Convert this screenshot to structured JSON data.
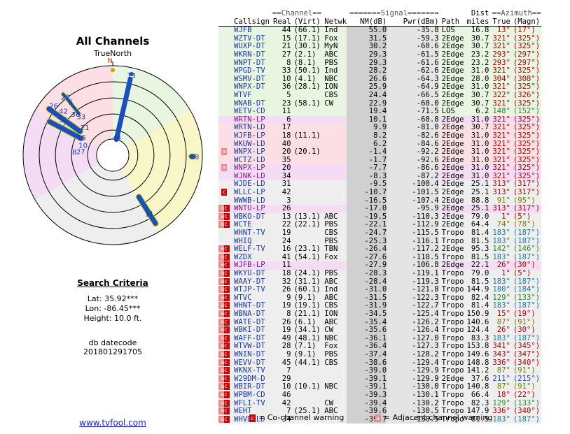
{
  "title": "All Channels",
  "compass_label": "TrueNorth",
  "compass_marker": "N",
  "search": {
    "heading": "Search Criteria",
    "lat": "Lat: 35.92***",
    "lon": "Lon: -86.45***",
    "height": "Height: 10.0 ft.",
    "db_label": "db datecode",
    "db_value": "201801291705"
  },
  "site_link": "www.tvfool.com",
  "legend": {
    "co_mark": "c",
    "co_text": "= Co-channel warning",
    "adj_mark": "a",
    "adj_text": "= Adjacent channel warning"
  },
  "colors": {
    "green": "#e8f5e1",
    "yellow": "#f9f6c8",
    "grey": "#eeeeee",
    "pink": "#fbdfe4",
    "violet": "#f3dcf4",
    "co": "#cc0000",
    "adj": "#f08a8a"
  },
  "polar": {
    "labels": [
      {
        "text": "13",
        "az": 13,
        "r": 0.92
      },
      {
        "text": "3",
        "az": 91,
        "r": 0.94
      },
      {
        "text": "44",
        "az": 13,
        "r": 0.2
      },
      {
        "text": "11",
        "az": 148,
        "r": 0.77
      },
      {
        "text": "23",
        "az": 321,
        "r": 0.84
      },
      {
        "text": "5",
        "az": 322,
        "r": 0.76
      },
      {
        "text": "26",
        "az": 310,
        "r": 0.86
      },
      {
        "text": "36",
        "az": 318,
        "r": 0.62
      },
      {
        "text": "42",
        "az": 312,
        "r": 0.74
      },
      {
        "text": "33",
        "az": 321,
        "r": 0.56
      },
      {
        "text": "31",
        "az": 306,
        "r": 0.68
      },
      {
        "text": "21",
        "az": 315,
        "r": 0.44
      },
      {
        "text": "15",
        "az": 300,
        "r": 0.4
      },
      {
        "text": "10",
        "az": 289,
        "r": 0.35
      },
      {
        "text": "8",
        "az": 275,
        "r": 0.43
      },
      {
        "text": "27",
        "az": 277,
        "r": 0.36
      }
    ],
    "beams": [
      {
        "az": 13,
        "r1": 0.18,
        "r2": 0.87,
        "w": 5,
        "fill": "#1a4fbf",
        "stroke": "#1a4fbf"
      },
      {
        "az": 91,
        "r1": 0.88,
        "r2": 0.9,
        "w": 7,
        "fill": "#1a4fbf",
        "stroke": "#d8d800"
      },
      {
        "az": 148,
        "r1": 0.55,
        "r2": 0.9,
        "w": 7,
        "fill": "#1a4fbf",
        "stroke": "#d8d800"
      },
      {
        "az": 321,
        "r1": 0.6,
        "r2": 0.88,
        "w": 4,
        "fill": "#1a4fbf",
        "stroke": "#d8d800"
      },
      {
        "az": 306,
        "r1": 0.45,
        "r2": 0.88,
        "w": 7,
        "fill": "#1a4fbf",
        "stroke": "#d8d800"
      },
      {
        "az": 298,
        "r1": 0.4,
        "r2": 0.8,
        "w": 7,
        "fill": "#1a4fbf",
        "stroke": "#d8d800"
      }
    ],
    "dots": [
      {
        "az": 0,
        "r": 0.95,
        "fill": "#d8a000"
      },
      {
        "az": 13,
        "r": 0.93,
        "fill": "#1a4fbf"
      }
    ]
  },
  "table": {
    "group_headers": {
      "channel": "==Channel==",
      "signal": "=======Signal=======",
      "dist": "Dist",
      "azimuth": "==Azimuth=="
    },
    "headers": [
      "Callsign",
      "Real",
      "(Virt)",
      "Netwk",
      "NM(dB)",
      "Pwr(dBm)",
      "Path",
      "miles",
      "True",
      "(Magn)"
    ],
    "rows": [
      {
        "w": "",
        "call": "WJFB",
        "real": "44",
        "virt": "(66.1)",
        "net": "Ind",
        "nm": "55.0",
        "pwr": "-35.8",
        "path": "LOS",
        "mi": "16.8",
        "tru": "13°",
        "mag": "(17°)",
        "bg": "green",
        "tc": "#b00000"
      },
      {
        "w": "",
        "call": "WZTV-DT",
        "real": "15",
        "virt": "(17.1)",
        "net": "Fox",
        "nm": "31.5",
        "pwr": "-59.3",
        "path": "2Edge",
        "mi": "30.7",
        "tru": "321°",
        "mag": "(325°)",
        "bg": "green",
        "tc": "#b00000"
      },
      {
        "w": "",
        "call": "WUXP-DT",
        "real": "21",
        "virt": "(30.1)",
        "net": "MyN",
        "nm": "30.2",
        "pwr": "-60.6",
        "path": "2Edge",
        "mi": "30.7",
        "tru": "321°",
        "mag": "(325°)",
        "bg": "green",
        "tc": "#b00000"
      },
      {
        "w": "",
        "call": "WKRN-DT",
        "real": "27",
        "virt": "(2.1)",
        "net": "ABC",
        "nm": "29.3",
        "pwr": "-61.5",
        "path": "2Edge",
        "mi": "23.2",
        "tru": "293°",
        "mag": "(297°)",
        "bg": "green",
        "tc": "#b00000"
      },
      {
        "w": "",
        "call": "WNPT-DT",
        "real": "8",
        "virt": "(8.1)",
        "net": "PBS",
        "nm": "29.3",
        "pwr": "-61.6",
        "path": "2Edge",
        "mi": "23.2",
        "tru": "293°",
        "mag": "(297°)",
        "bg": "green",
        "tc": "#b00000"
      },
      {
        "w": "",
        "call": "WPGD-TV",
        "real": "33",
        "virt": "(50.1)",
        "net": "Ind",
        "nm": "28.2",
        "pwr": "-62.6",
        "path": "2Edge",
        "mi": "31.0",
        "tru": "321°",
        "mag": "(325°)",
        "bg": "green",
        "tc": "#b00000"
      },
      {
        "w": "",
        "call": "WSMV-DT",
        "real": "10",
        "virt": "(4.1)",
        "net": "NBC",
        "nm": "26.6",
        "pwr": "-64.3",
        "path": "2Edge",
        "mi": "28.0",
        "tru": "304°",
        "mag": "(308°)",
        "bg": "green",
        "tc": "#b00000"
      },
      {
        "w": "",
        "call": "WNPX-DT",
        "real": "36",
        "virt": "(28.1)",
        "net": "ION",
        "nm": "25.9",
        "pwr": "-64.9",
        "path": "2Edge",
        "mi": "31.0",
        "tru": "321°",
        "mag": "(325°)",
        "bg": "green",
        "tc": "#b00000"
      },
      {
        "w": "",
        "call": "WTVF",
        "real": "5",
        "virt": "",
        "net": "CBS",
        "nm": "24.4",
        "pwr": "-66.5",
        "path": "2Edge",
        "mi": "30.7",
        "tru": "322°",
        "mag": "(326°)",
        "bg": "green",
        "tc": "#b00000"
      },
      {
        "w": "",
        "call": "WNAB-DT",
        "real": "23",
        "virt": "(58.1)",
        "net": "CW",
        "nm": "22.9",
        "pwr": "-68.0",
        "path": "2Edge",
        "mi": "30.7",
        "tru": "321°",
        "mag": "(325°)",
        "bg": "green",
        "tc": "#b00000"
      },
      {
        "w": "",
        "call": "WETV-CD",
        "real": "11",
        "virt": "",
        "net": "",
        "nm": "19.4",
        "pwr": "-71.5",
        "path": "LOS",
        "mi": "6.2",
        "tru": "148°",
        "mag": "(152°)",
        "bg": "green",
        "tc": "#2a8a2a"
      },
      {
        "w": "",
        "call": "WRTN-LP",
        "real": "6",
        "virt": "",
        "net": "",
        "nm": "10.1",
        "pwr": "-68.8",
        "path": "2Edge",
        "mi": "31.0",
        "tru": "321°",
        "mag": "(325°)",
        "bg": "violet",
        "tc": "#b00000"
      },
      {
        "w": "",
        "call": "WRTN-LD",
        "real": "17",
        "virt": "",
        "net": "",
        "nm": "9.9",
        "pwr": "-81.0",
        "path": "2Edge",
        "mi": "30.7",
        "tru": "321°",
        "mag": "(325°)",
        "bg": "pink",
        "tc": "#b00000"
      },
      {
        "w": "",
        "call": "WJFB-LP",
        "real": "18",
        "virt": "(11.1)",
        "net": "",
        "nm": "8.2",
        "pwr": "-82.6",
        "path": "2Edge",
        "mi": "31.0",
        "tru": "321°",
        "mag": "(325°)",
        "bg": "pink",
        "tc": "#b00000"
      },
      {
        "w": "",
        "call": "WKUW-LD",
        "real": "40",
        "virge": "",
        "virt": "",
        "net": "",
        "nm": "6.2",
        "pwr": "-84.6",
        "path": "2Edge",
        "mi": "31.0",
        "tru": "321°",
        "mag": "(325°)",
        "bg": "pink",
        "tc": "#b00000"
      },
      {
        "w": "a",
        "call": "WNPX-LP",
        "real": "20",
        "virt": "(20.1)",
        "net": "",
        "nm": "-1.4",
        "pwr": "-92.2",
        "path": "2Edge",
        "mi": "31.0",
        "tru": "321°",
        "mag": "(325°)",
        "bg": "pink",
        "tc": "#b00000"
      },
      {
        "w": "",
        "call": "WCTZ-LD",
        "real": "35",
        "virt": "",
        "net": "",
        "nm": "-1.7",
        "pwr": "-92.6",
        "path": "2Edge",
        "mi": "31.0",
        "tru": "321°",
        "mag": "(325°)",
        "bg": "pink",
        "tc": "#b00000"
      },
      {
        "w": "a",
        "call": "WNPX-LP",
        "real": "20",
        "virt": "",
        "net": "",
        "nm": "-7.7",
        "pwr": "-86.6",
        "path": "2Edge",
        "mi": "31.0",
        "tru": "321°",
        "mag": "(325°)",
        "bg": "violet",
        "tc": "#b00000"
      },
      {
        "w": "",
        "call": "WJNK-LD",
        "real": "34",
        "virt": "",
        "net": "",
        "nm": "-8.3",
        "pwr": "-87.2",
        "path": "2Edge",
        "mi": "31.0",
        "tru": "321°",
        "mag": "(325°)",
        "bg": "violet",
        "tc": "#b00000"
      },
      {
        "w": "",
        "call": "WJDE-LD",
        "real": "31",
        "virt": "",
        "net": "",
        "nm": "-9.5",
        "pwr": "-100.4",
        "path": "2Edge",
        "mi": "25.1",
        "tru": "313°",
        "mag": "(317°)",
        "bg": "grey",
        "tc": "#b00000"
      },
      {
        "w": "c",
        "call": "WLLC-LP",
        "real": "42",
        "virt": "",
        "net": "",
        "nm": "-10.7",
        "pwr": "-101.5",
        "path": "2Edge",
        "mi": "25.1",
        "tru": "313°",
        "mag": "(317°)",
        "bg": "grey",
        "tc": "#b00000"
      },
      {
        "w": "",
        "call": "WWWB-LD",
        "real": "3",
        "virt": "",
        "net": "",
        "nm": "-16.5",
        "pwr": "-107.4",
        "path": "2Edge",
        "mi": "88.8",
        "tru": "91°",
        "mag": "(95°)",
        "bg": "grey",
        "tc": "#7a7a00"
      },
      {
        "w": "ac",
        "call": "WNTU-LP",
        "real": "26",
        "virt": "",
        "net": "",
        "nm": "-17.0",
        "pwr": "-95.9",
        "path": "2Edge",
        "mi": "25.1",
        "tru": "313°",
        "mag": "(317°)",
        "bg": "violet",
        "tc": "#b00000"
      },
      {
        "w": "ac",
        "call": "WBKO-DT",
        "real": "13",
        "virt": "(13.1)",
        "net": "ABC",
        "nm": "-19.5",
        "pwr": "-110.3",
        "path": "2Edge",
        "mi": "79.0",
        "tru": "1°",
        "mag": "(5°)",
        "bg": "grey",
        "tc": "#b00000"
      },
      {
        "w": "ac",
        "call": "WCTE",
        "real": "22",
        "virt": "(22.1)",
        "net": "PBS",
        "nm": "-22.1",
        "pwr": "-112.9",
        "path": "2Edge",
        "mi": "64.4",
        "tru": "74°",
        "mag": "(78°)",
        "bg": "grey",
        "tc": "#7a7a00"
      },
      {
        "w": "",
        "call": "WHNT-TV",
        "real": "19",
        "virt": "",
        "net": "CBS",
        "nm": "-24.7",
        "pwr": "-115.5",
        "path": "Tropo",
        "mi": "81.4",
        "tru": "183°",
        "mag": "(187°)",
        "bg": "grey",
        "tc": "#1a7a9a"
      },
      {
        "w": "",
        "call": "WHIQ",
        "real": "24",
        "virt": "",
        "net": "PBS",
        "nm": "-25.3",
        "pwr": "-116.1",
        "path": "Tropo",
        "mi": "81.5",
        "tru": "183°",
        "mag": "(187°)",
        "bg": "grey",
        "tc": "#1a7a9a"
      },
      {
        "w": "ac",
        "call": "WELF-TV",
        "real": "16",
        "virt": "(23.1)",
        "net": "TBN",
        "nm": "-26.4",
        "pwr": "-117.2",
        "path": "2Edge",
        "mi": "95.3",
        "tru": "142°",
        "mag": "(146°)",
        "bg": "grey",
        "tc": "#2a8a2a"
      },
      {
        "w": "ac",
        "call": "WZDX",
        "real": "41",
        "virt": "(54.1)",
        "net": "Fox",
        "nm": "-27.6",
        "pwr": "-118.5",
        "path": "Tropo",
        "mi": "81.5",
        "tru": "183°",
        "mag": "(187°)",
        "bg": "grey",
        "tc": "#1a7a9a"
      },
      {
        "w": "ac",
        "call": "WJFB-LP",
        "real": "11",
        "virt": "",
        "net": "",
        "nm": "-27.9",
        "pwr": "-106.8",
        "path": "2Edge",
        "mi": "22.1",
        "tru": "26°",
        "mag": "(30°)",
        "bg": "violet",
        "tc": "#b00000"
      },
      {
        "w": "ac",
        "call": "WKYU-DT",
        "real": "18",
        "virt": "(24.1)",
        "net": "PBS",
        "nm": "-28.3",
        "pwr": "-119.1",
        "path": "Tropo",
        "mi": "79.0",
        "tru": "1°",
        "mag": "(5°)",
        "bg": "grey",
        "tc": "#b00000"
      },
      {
        "w": "ac",
        "call": "WAAY-DT",
        "real": "32",
        "virt": "(31.1)",
        "net": "ABC",
        "nm": "-28.4",
        "pwr": "-119.3",
        "path": "Tropo",
        "mi": "81.5",
        "tru": "183°",
        "mag": "(187°)",
        "bg": "grey",
        "tc": "#1a7a9a"
      },
      {
        "w": "ac",
        "call": "WTJP-TV",
        "real": "26",
        "virt": "(60.1)",
        "net": "Ind",
        "nm": "-31.0",
        "pwr": "-121.8",
        "path": "Tropo",
        "mi": "144.9",
        "tru": "180°",
        "mag": "(184°)",
        "bg": "grey",
        "tc": "#1a7a9a"
      },
      {
        "w": "ac",
        "call": "WTVC",
        "real": "9",
        "virt": "(9.1)",
        "net": "ABC",
        "nm": "-31.5",
        "pwr": "-122.3",
        "path": "Tropo",
        "mi": "82.4",
        "tru": "129°",
        "mag": "(133°)",
        "bg": "grey",
        "tc": "#2a8a2a"
      },
      {
        "w": "ac",
        "call": "WHNT-DT",
        "real": "19",
        "virt": "(19.1)",
        "net": "CBS",
        "nm": "-31.9",
        "pwr": "-122.7",
        "path": "Tropo",
        "mi": "81.4",
        "tru": "183°",
        "mag": "(187°)",
        "bg": "grey",
        "tc": "#1a7a9a"
      },
      {
        "w": "ac",
        "call": "WBNA-DT",
        "real": "8",
        "virt": "(21.1)",
        "net": "ION",
        "nm": "-34.5",
        "pwr": "-125.4",
        "path": "Tropo",
        "mi": "150.9",
        "tru": "15°",
        "mag": "(19°)",
        "bg": "grey",
        "tc": "#b00000"
      },
      {
        "w": "ac",
        "call": "WATE-DT",
        "real": "26",
        "virt": "(6.1)",
        "net": "ABC",
        "nm": "-35.4",
        "pwr": "-126.2",
        "path": "Tropo",
        "mi": "140.6",
        "tru": "87°",
        "mag": "(91°)",
        "bg": "grey",
        "tc": "#7a7a00"
      },
      {
        "w": "ac",
        "call": "WBKI-DT",
        "real": "19",
        "virt": "(34.1)",
        "net": "CW",
        "nm": "-35.6",
        "pwr": "-126.4",
        "path": "Tropo",
        "mi": "124.4",
        "tru": "26°",
        "mag": "(30°)",
        "bg": "grey",
        "tc": "#b00000"
      },
      {
        "w": "ac",
        "call": "WAFF-DT",
        "real": "49",
        "virt": "(48.1)",
        "net": "NBC",
        "nm": "-36.1",
        "pwr": "-127.0",
        "path": "Tropo",
        "mi": "83.3",
        "tru": "183°",
        "mag": "(187°)",
        "bg": "grey",
        "tc": "#1a7a9a"
      },
      {
        "w": "ac",
        "call": "WTVW-DT",
        "real": "28",
        "virt": "(7.1)",
        "net": "Fox",
        "nm": "-36.4",
        "pwr": "-127.3",
        "path": "Tropo",
        "mi": "153.8",
        "tru": "341°",
        "mag": "(345°)",
        "bg": "grey",
        "tc": "#b00000"
      },
      {
        "w": "ac",
        "call": "WNIN-DT",
        "real": "9",
        "virt": "(9.1)",
        "net": "PBS",
        "nm": "-37.4",
        "pwr": "-128.2",
        "path": "Tropo",
        "mi": "149.6",
        "tru": "343°",
        "mag": "(347°)",
        "bg": "grey",
        "tc": "#b00000"
      },
      {
        "w": "ac",
        "call": "WEVV-DT",
        "real": "45",
        "virt": "(44.1)",
        "net": "CBS",
        "nm": "-38.6",
        "pwr": "-129.4",
        "path": "Tropo",
        "mi": "148.8",
        "tru": "336°",
        "mag": "(340°)",
        "bg": "grey",
        "tc": "#b00000"
      },
      {
        "w": "ac",
        "call": "WKNX-TV",
        "real": "7",
        "virt": "",
        "net": "",
        "nm": "-39.0",
        "pwr": "-129.9",
        "path": "Tropo",
        "mi": "141.2",
        "tru": "87°",
        "mag": "(91°)",
        "bg": "grey",
        "tc": "#7a7a00"
      },
      {
        "w": "ac",
        "call": "W29DM-D",
        "real": "29",
        "virt": "",
        "net": "",
        "nm": "-39.1",
        "pwr": "-129.9",
        "path": "2Edge",
        "mi": "37.6",
        "tru": "211°",
        "mag": "(215°)",
        "bg": "grey",
        "tc": "#1a4fbf"
      },
      {
        "w": "ac",
        "call": "WBIR-DT",
        "real": "10",
        "virt": "(10.1)",
        "net": "NBC",
        "nm": "-39.1",
        "pwr": "-130.0",
        "path": "Tropo",
        "mi": "140.8",
        "tru": "87°",
        "mag": "(91°)",
        "bg": "grey",
        "tc": "#7a7a00"
      },
      {
        "w": "ac",
        "call": "WPBM-CD",
        "real": "46",
        "virt": "",
        "net": "",
        "nm": "-39.3",
        "pwr": "-130.1",
        "path": "Tropo",
        "mi": "66.4",
        "tru": "18°",
        "mag": "(22°)",
        "bg": "grey",
        "tc": "#b00000"
      },
      {
        "w": "ac",
        "call": "WFLI-TV",
        "real": "42",
        "virt": "",
        "net": "CW",
        "nm": "-39.4",
        "pwr": "-130.2",
        "path": "Tropo",
        "mi": "82.3",
        "tru": "129°",
        "mag": "(133°)",
        "bg": "grey",
        "tc": "#2a8a2a"
      },
      {
        "w": "ac",
        "call": "WEHT",
        "real": "7",
        "virt": "(25.1)",
        "net": "ABC",
        "nm": "-39.6",
        "pwr": "-130.5",
        "path": "Tropo",
        "mi": "147.9",
        "tru": "336°",
        "mag": "(340°)",
        "bg": "grey",
        "tc": "#b00000"
      },
      {
        "w": "ac",
        "call": "WHVD-LD",
        "real": "34",
        "virt": "",
        "net": "",
        "nm": "-39.7",
        "pwr": "-130.5",
        "path": "Tropo",
        "mi": "81.5",
        "tru": "183°",
        "mag": "(187°)",
        "bg": "grey",
        "tc": "#1a7a9a"
      }
    ]
  }
}
